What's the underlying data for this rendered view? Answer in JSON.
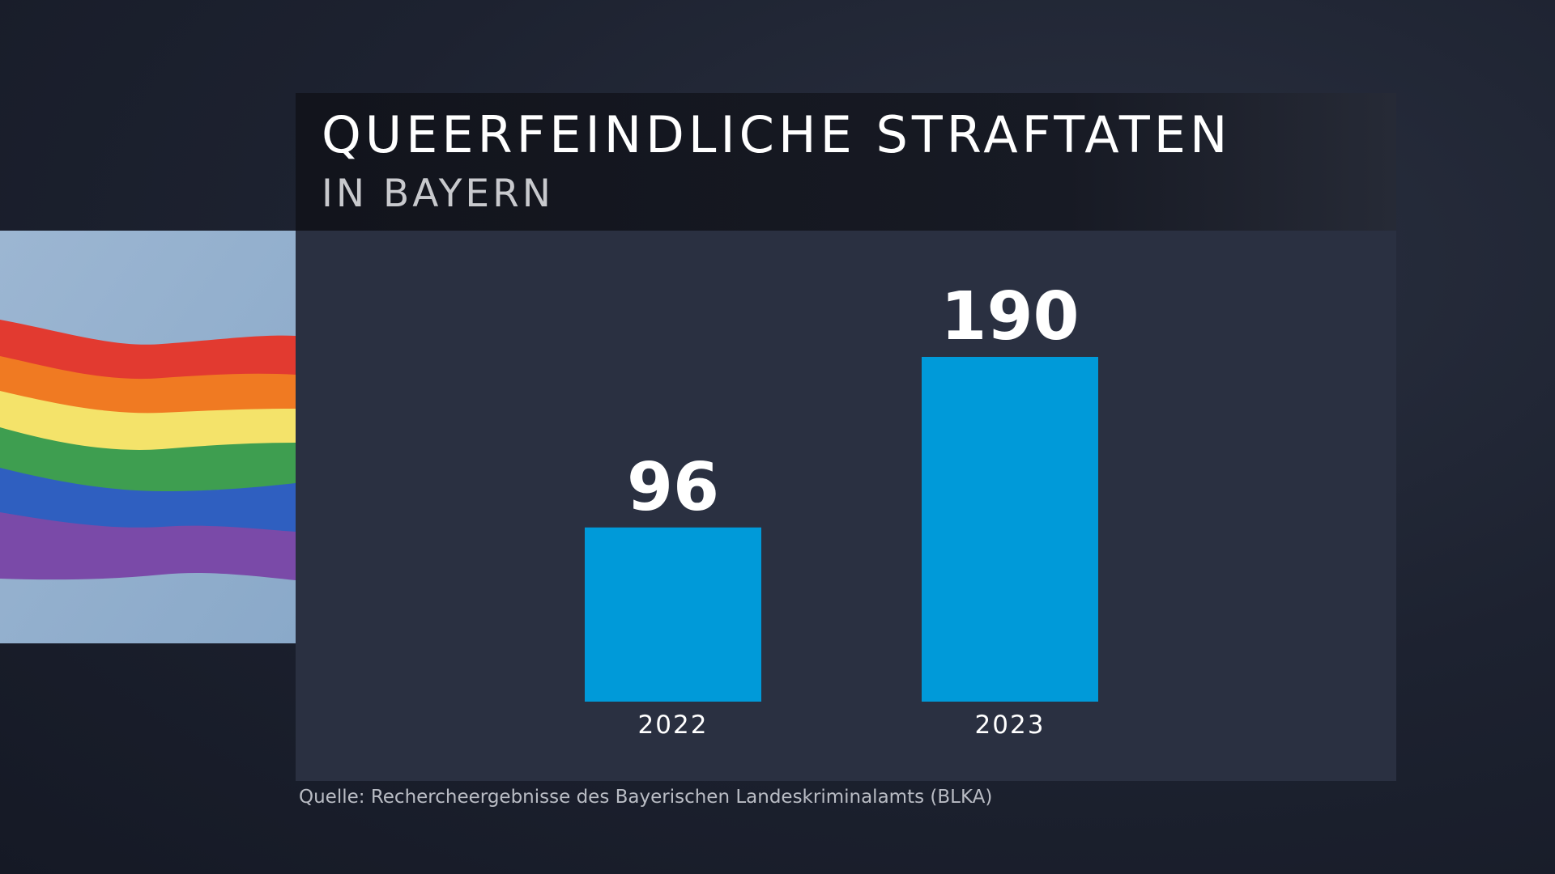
{
  "header": {
    "title": "QUEERFEINDLICHE STRAFTATEN",
    "subtitle": "IN BAYERN"
  },
  "image": {
    "description_icon": "rainbow-flag-image"
  },
  "chart_data": {
    "type": "bar",
    "categories": [
      "2022",
      "2023"
    ],
    "values": [
      96,
      190
    ],
    "data_labels": [
      "96",
      "190"
    ],
    "bar_color": "#009ad9",
    "grid": false,
    "title": "QUEERFEINDLICHE STRAFTATEN",
    "subtitle": "IN BAYERN"
  },
  "footer": {
    "source": "Quelle: Rechercheergebnisse des Bayerischen Landeskriminalamts (BLKA)"
  }
}
